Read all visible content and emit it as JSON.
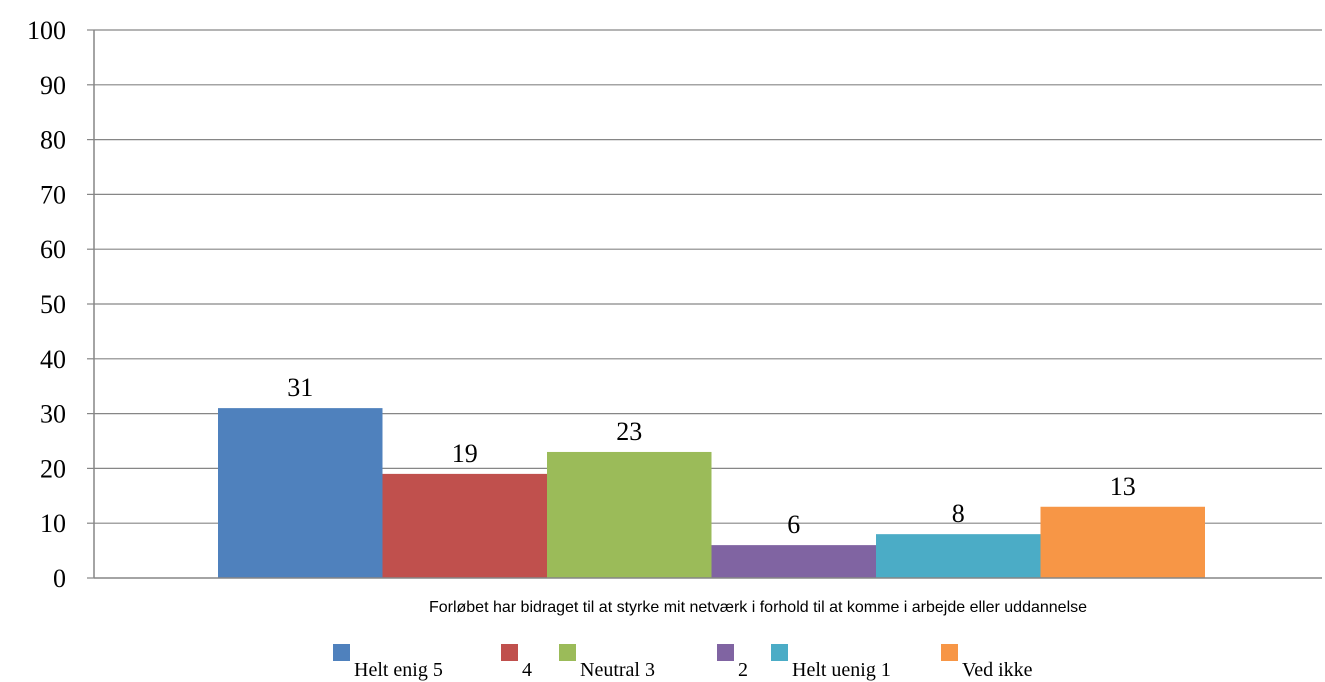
{
  "chart_data": {
    "type": "bar",
    "title": "",
    "xlabel": "",
    "ylabel": "",
    "categories": [
      "Forløbet har bidraget til at styrke mit netværk i forhold til at komme i arbejde eller uddannelse"
    ],
    "series": [
      {
        "name": "Helt enig 5",
        "values": [
          31
        ],
        "color": "#4F81BD"
      },
      {
        "name": "4",
        "values": [
          19
        ],
        "color": "#C0504D"
      },
      {
        "name": "Neutral 3",
        "values": [
          23
        ],
        "color": "#9BBB59"
      },
      {
        "name": "2",
        "values": [
          6
        ],
        "color": "#8064A2"
      },
      {
        "name": "Helt uenig 1",
        "values": [
          8
        ],
        "color": "#4BACC6"
      },
      {
        "name": "Ved ikke",
        "values": [
          13
        ],
        "color": "#F79646"
      }
    ],
    "ylim": [
      0,
      100
    ],
    "yticks": [
      0,
      10,
      20,
      30,
      40,
      50,
      60,
      70,
      80,
      90,
      100
    ],
    "grid": true,
    "legend": "bottom",
    "data_labels": true
  }
}
